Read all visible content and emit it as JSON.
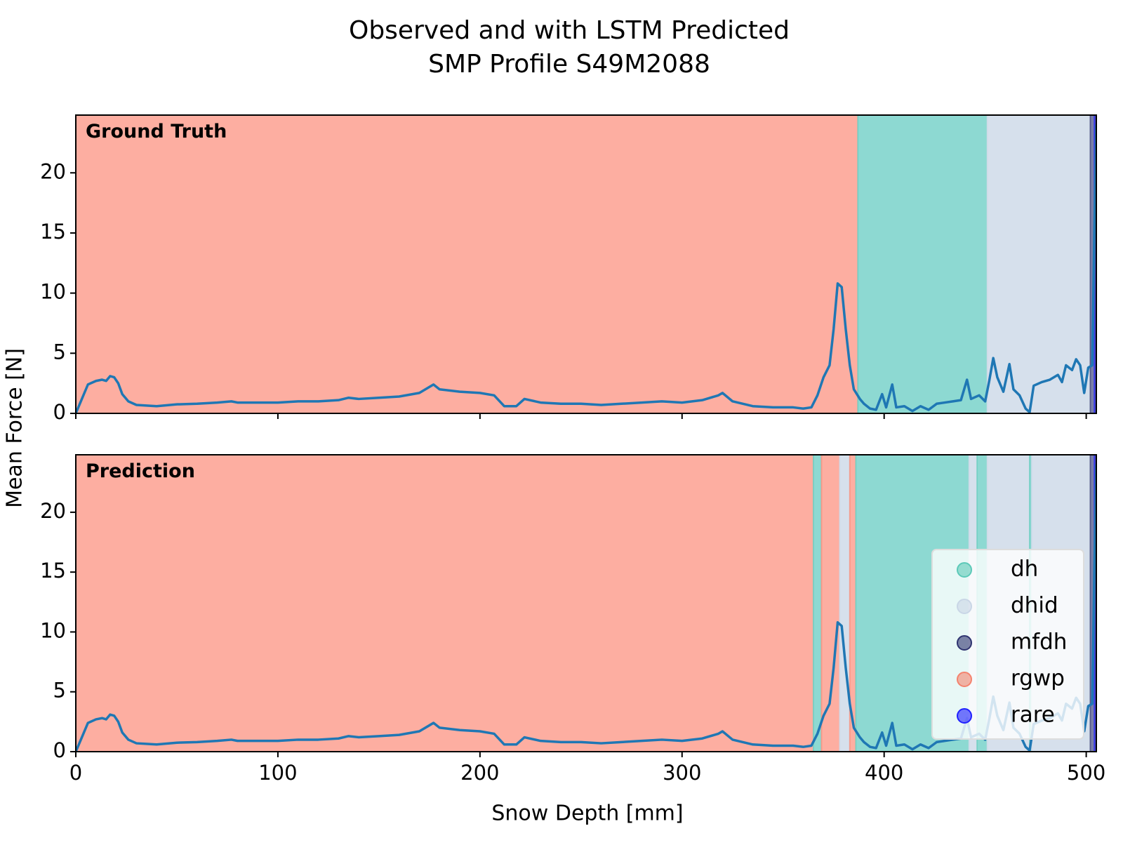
{
  "chart_data": {
    "type": "line",
    "title": "Observed and with LSTM Predicted",
    "subtitle": "SMP Profile S49M2088",
    "xlabel": "Snow Depth [mm]",
    "ylabel": "Mean Force [N]",
    "xlim": [
      0,
      505
    ],
    "xticks": [
      0,
      100,
      200,
      300,
      400,
      500
    ],
    "ylim": [
      0,
      24.8
    ],
    "yticks": [
      0,
      5,
      10,
      15,
      20
    ],
    "color": "#1f77b4",
    "legend": "lower right",
    "classes": [
      {
        "name": "dh",
        "color": "#8dd9d2",
        "marker": "#5cc9b8"
      },
      {
        "name": "dhid",
        "color": "#d6e0ec",
        "marker": "#c9d6e6"
      },
      {
        "name": "mfdh",
        "color": "#7a7fa8",
        "marker": "#2f3470"
      },
      {
        "name": "rgwp",
        "color": "#fdaea1",
        "marker": "#f4836e"
      },
      {
        "name": "rare",
        "color": "#5050d0",
        "marker": "#2020ff"
      }
    ],
    "x": [
      0,
      3,
      6,
      10,
      13,
      15,
      17,
      19,
      21,
      23,
      26,
      30,
      40,
      50,
      60,
      70,
      77,
      80,
      90,
      100,
      110,
      120,
      130,
      135,
      140,
      150,
      160,
      170,
      177,
      180,
      190,
      200,
      207,
      212,
      218,
      222,
      230,
      240,
      250,
      260,
      270,
      280,
      290,
      300,
      310,
      318,
      320,
      325,
      335,
      345,
      355,
      360,
      364,
      367,
      370,
      373,
      375,
      377,
      379,
      381,
      383,
      385,
      388,
      390,
      393,
      396,
      399,
      401,
      404,
      406,
      410,
      414,
      418,
      422,
      426,
      430,
      434,
      438,
      441,
      443,
      447,
      450,
      452,
      454,
      456,
      459,
      462,
      464,
      467,
      470,
      472,
      474,
      478,
      482,
      486,
      488,
      490,
      493,
      495,
      497,
      499,
      501,
      503,
      504,
      505
    ],
    "values": [
      0,
      1.2,
      2.4,
      2.7,
      2.8,
      2.7,
      3.1,
      3.0,
      2.5,
      1.6,
      1.0,
      0.7,
      0.6,
      0.75,
      0.8,
      0.9,
      1.0,
      0.9,
      0.9,
      0.9,
      1.0,
      1.0,
      1.1,
      1.3,
      1.2,
      1.3,
      1.4,
      1.7,
      2.4,
      2.0,
      1.8,
      1.7,
      1.5,
      0.6,
      0.6,
      1.2,
      0.9,
      0.8,
      0.8,
      0.7,
      0.8,
      0.9,
      1.0,
      0.9,
      1.1,
      1.5,
      1.7,
      1.0,
      0.6,
      0.5,
      0.5,
      0.4,
      0.5,
      1.5,
      3.0,
      4.0,
      7.0,
      10.8,
      10.5,
      7.0,
      4.0,
      2.0,
      1.2,
      0.8,
      0.4,
      0.3,
      1.6,
      0.5,
      2.4,
      0.5,
      0.6,
      0.2,
      0.6,
      0.3,
      0.8,
      0.9,
      1.0,
      1.1,
      2.8,
      1.2,
      1.5,
      1.0,
      2.7,
      4.6,
      3.0,
      1.8,
      4.1,
      2.0,
      1.5,
      0.4,
      0.1,
      2.3,
      2.6,
      2.8,
      3.2,
      2.6,
      4.0,
      3.6,
      4.5,
      4.0,
      1.7,
      3.8,
      4.0,
      15.0,
      24
    ],
    "panels": [
      {
        "label": "Ground Truth",
        "regions": [
          {
            "class": "rgwp",
            "start": 0,
            "end": 387
          },
          {
            "class": "dh",
            "start": 387,
            "end": 451
          },
          {
            "class": "dhid",
            "start": 451,
            "end": 502
          },
          {
            "class": "mfdh",
            "start": 502,
            "end": 504
          },
          {
            "class": "rare",
            "start": 504,
            "end": 505
          }
        ]
      },
      {
        "label": "Prediction",
        "regions": [
          {
            "class": "rgwp",
            "start": 0,
            "end": 365
          },
          {
            "class": "dh",
            "start": 365,
            "end": 369
          },
          {
            "class": "rgwp",
            "start": 369,
            "end": 378
          },
          {
            "class": "dhid",
            "start": 378,
            "end": 383
          },
          {
            "class": "rgwp",
            "start": 383,
            "end": 386
          },
          {
            "class": "dh",
            "start": 386,
            "end": 442
          },
          {
            "class": "dhid",
            "start": 442,
            "end": 446
          },
          {
            "class": "dh",
            "start": 446,
            "end": 451
          },
          {
            "class": "dhid",
            "start": 451,
            "end": 472
          },
          {
            "class": "dh",
            "start": 472,
            "end": 473
          },
          {
            "class": "dhid",
            "start": 473,
            "end": 502
          },
          {
            "class": "mfdh",
            "start": 502,
            "end": 504
          },
          {
            "class": "rare",
            "start": 504,
            "end": 505
          }
        ]
      }
    ]
  }
}
